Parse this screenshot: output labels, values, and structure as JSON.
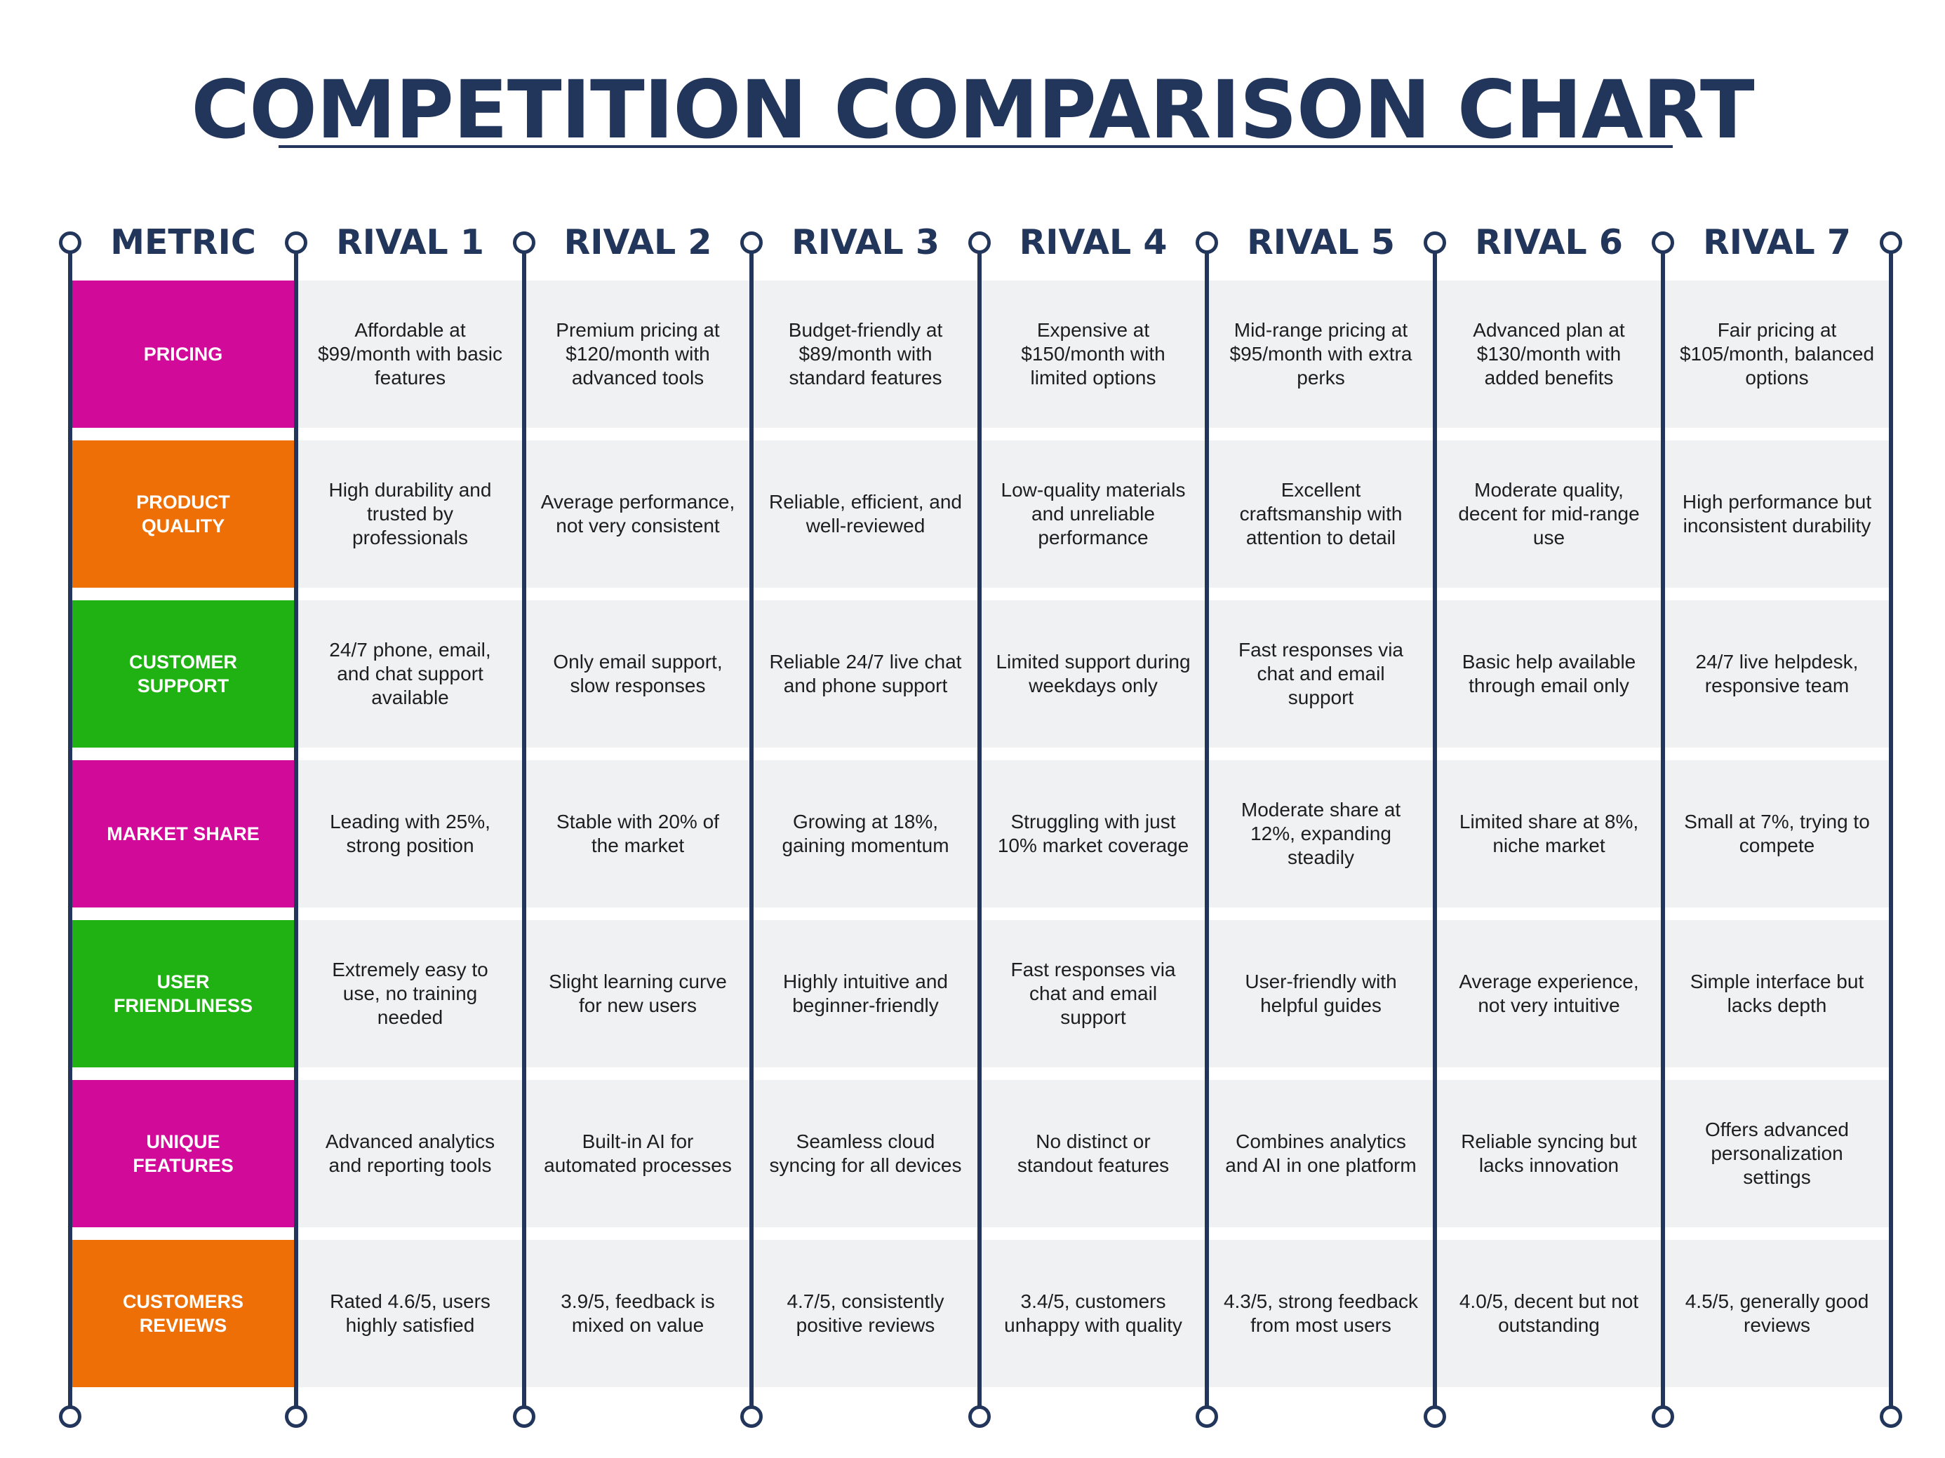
{
  "title": "COMPETITION COMPARISON CHART",
  "colors": {
    "navy": "#22355a",
    "magenta": "#d10a9a",
    "orange": "#ee6f06",
    "green": "#1fb212",
    "band": "#f0f1f3"
  },
  "chart_data": {
    "type": "table",
    "title": "COMPETITION COMPARISON CHART",
    "columns": [
      "METRIC",
      "RIVAL 1",
      "RIVAL 2",
      "RIVAL 3",
      "RIVAL 4",
      "RIVAL 5",
      "RIVAL 6",
      "RIVAL 7"
    ],
    "rows": [
      {
        "metric": "PRICING",
        "color": "#d10a9a",
        "cells": [
          "Affordable at $99/month with basic features",
          "Premium pricing at $120/month with advanced tools",
          "Budget-friendly at $89/month with standard features",
          "Expensive at $150/month with limited options",
          "Mid-range pricing at $95/month with extra perks",
          "Advanced plan at $130/month with added benefits",
          "Fair pricing at $105/month, balanced options"
        ]
      },
      {
        "metric": "PRODUCT QUALITY",
        "color": "#ee6f06",
        "cells": [
          "High durability and trusted by professionals",
          "Average performance, not very consistent",
          "Reliable, efficient, and well-reviewed",
          "Low-quality materials and unreliable performance",
          "Excellent craftsmanship with attention to detail",
          "Moderate quality, decent for mid-range use",
          "High performance but inconsistent durability"
        ]
      },
      {
        "metric": "CUSTOMER SUPPORT",
        "color": "#1fb212",
        "cells": [
          "24/7 phone, email, and chat support available",
          "Only email support, slow responses",
          "Reliable 24/7 live chat and phone support",
          "Limited support during weekdays only",
          "Fast responses via chat and email support",
          "Basic help available through email only",
          "24/7 live helpdesk, responsive team"
        ]
      },
      {
        "metric": "MARKET SHARE",
        "color": "#d10a9a",
        "cells": [
          "Leading with 25%, strong position",
          "Stable with 20% of the market",
          "Growing at 18%, gaining momentum",
          "Struggling with just 10% market coverage",
          "Moderate share at 12%, expanding steadily",
          "Limited share at 8%, niche market",
          "Small at 7%, trying to compete"
        ]
      },
      {
        "metric": "USER FRIENDLINESS",
        "color": "#1fb212",
        "cells": [
          "Extremely easy to use, no training needed",
          "Slight learning curve for new users",
          "Highly intuitive and beginner-friendly",
          "Fast responses via chat and email support",
          "User-friendly with helpful guides",
          "Average experience, not very intuitive",
          "Simple interface but lacks depth"
        ]
      },
      {
        "metric": "UNIQUE FEATURES",
        "color": "#d10a9a",
        "cells": [
          "Advanced analytics and reporting tools",
          "Built-in AI for automated processes",
          "Seamless cloud syncing for all devices",
          "No distinct or standout features",
          "Combines analytics and AI in one platform",
          "Reliable syncing but lacks innovation",
          "Offers advanced personalization settings"
        ]
      },
      {
        "metric": "CUSTOMERS REVIEWS",
        "color": "#ee6f06",
        "cells": [
          "Rated 4.6/5, users highly satisfied",
          "3.9/5, feedback is mixed on value",
          "4.7/5, consistently positive reviews",
          "3.4/5, customers unhappy with quality",
          "4.3/5, strong feedback from most users",
          "4.0/5, decent but not outstanding",
          "4.5/5, generally good reviews"
        ]
      }
    ]
  }
}
